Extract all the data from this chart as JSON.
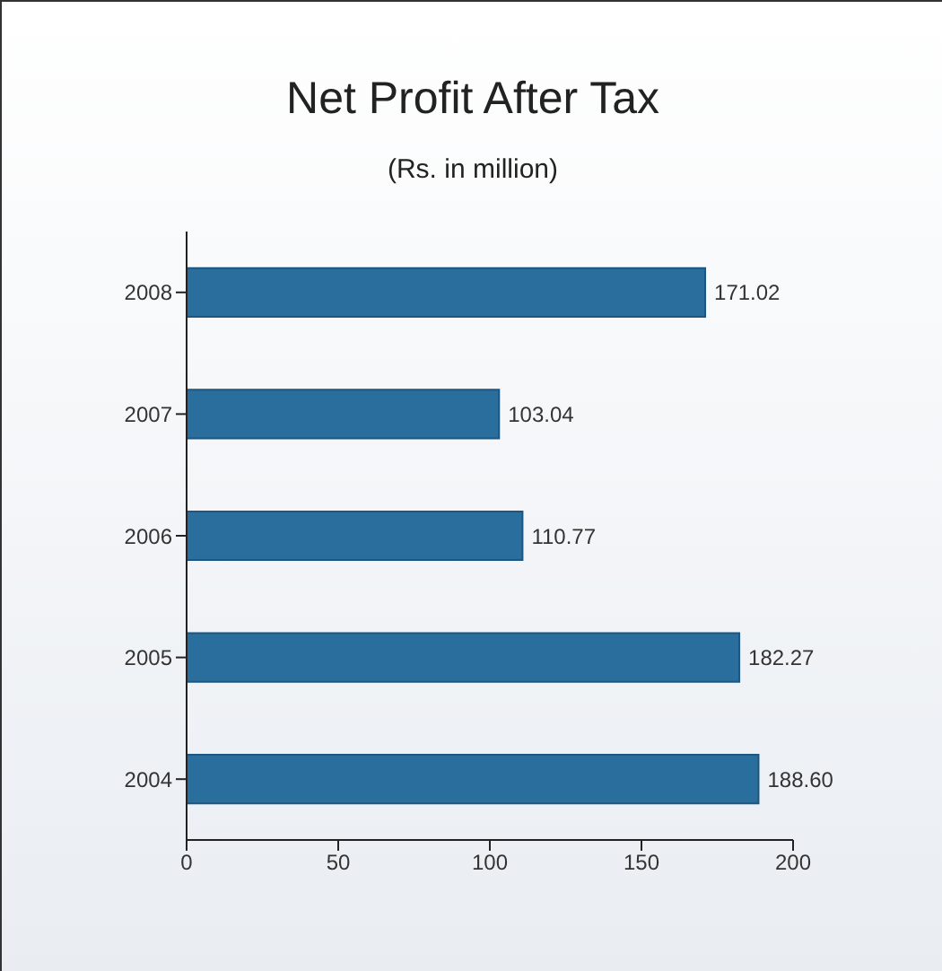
{
  "chart_data": {
    "type": "bar",
    "orientation": "horizontal",
    "title": "Net Profit After Tax",
    "subtitle": "(Rs. in million)",
    "categories": [
      "2008",
      "2007",
      "2006",
      "2005",
      "2004"
    ],
    "values": [
      171.02,
      103.04,
      110.77,
      182.27,
      188.6
    ],
    "value_labels": [
      "171.02",
      "103.04",
      "110.77",
      "182.27",
      "188.60"
    ],
    "color": "#2a6e9e",
    "xlim": [
      0,
      200
    ],
    "xticks": [
      0,
      50,
      100,
      150,
      200
    ],
    "grid": false,
    "legend": false
  }
}
